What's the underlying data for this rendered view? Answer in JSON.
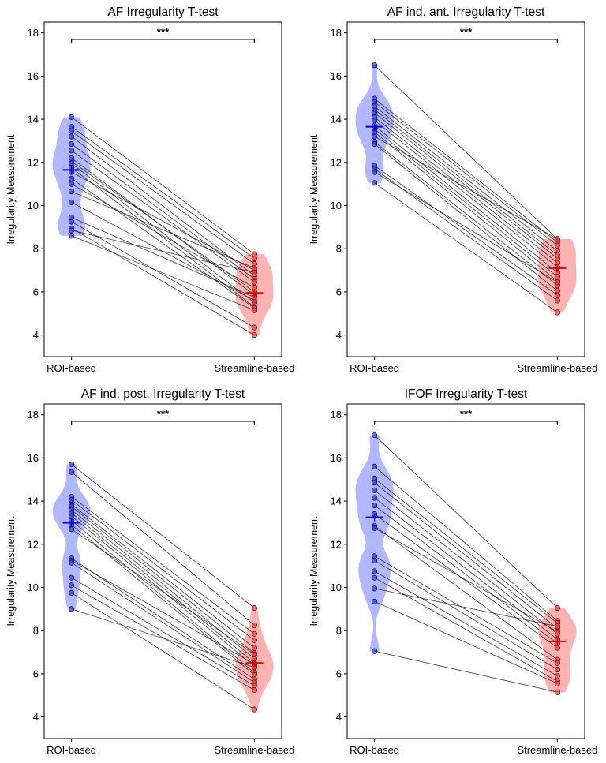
{
  "figure": {
    "layout": "2x2 grid"
  },
  "chart_data": [
    {
      "type": "violin-paired",
      "title": "AF Irregularity T-test",
      "ylabel": "Irregularity Measurement",
      "categories": [
        "ROI-based",
        "Streamline-based"
      ],
      "ylim": [
        3,
        18.5
      ],
      "yticks": [
        "4",
        "6",
        "8",
        "10",
        "12",
        "14",
        "16",
        "18"
      ],
      "significance": "***",
      "colors": {
        "left": "#0000cc",
        "right": "#dd0000",
        "left_fill": "#aab0ff",
        "right_fill": "#ffaaaa"
      },
      "means": [
        11.65,
        5.95
      ],
      "left_values": [
        14.1,
        13.65,
        13.45,
        13.2,
        12.85,
        12.55,
        12.2,
        12.05,
        11.95,
        11.75,
        11.55,
        11.25,
        11.0,
        10.65,
        10.15,
        9.45,
        9.25,
        8.95,
        8.85,
        8.6
      ],
      "right_values": [
        7.75,
        7.55,
        7.3,
        6.75,
        6.6,
        6.45,
        5.85,
        6.0,
        5.5,
        5.3,
        7.0,
        5.25,
        6.2,
        7.1,
        5.6,
        5.75,
        4.35,
        4.0,
        6.9,
        5.15
      ]
    },
    {
      "type": "violin-paired",
      "title": "AF ind. ant. Irregularity T-test",
      "ylabel": "Irregularity Measurement",
      "categories": [
        "ROI-based",
        "Streamline-based"
      ],
      "ylim": [
        3,
        18.5
      ],
      "yticks": [
        "4",
        "6",
        "8",
        "10",
        "12",
        "14",
        "16",
        "18"
      ],
      "significance": "***",
      "colors": {
        "left": "#0000cc",
        "right": "#dd0000",
        "left_fill": "#aab0ff",
        "right_fill": "#ffaaaa"
      },
      "means": [
        13.65,
        7.1
      ],
      "left_values": [
        16.5,
        14.95,
        14.8,
        14.6,
        14.45,
        14.3,
        14.1,
        13.95,
        13.7,
        13.55,
        13.4,
        13.2,
        12.95,
        12.85,
        11.85,
        11.7,
        11.55,
        11.05
      ],
      "right_values": [
        8.45,
        8.3,
        8.15,
        7.9,
        7.7,
        7.55,
        7.35,
        7.15,
        6.9,
        6.7,
        6.5,
        8.45,
        6.3,
        6.05,
        5.85,
        5.6,
        6.45,
        5.05
      ]
    },
    {
      "type": "violin-paired",
      "title": "AF ind. post. Irregularity T-test",
      "ylabel": "Irregularity Measurement",
      "categories": [
        "ROI-based",
        "Streamline-based"
      ],
      "ylim": [
        3,
        18.5
      ],
      "yticks": [
        "4",
        "6",
        "8",
        "10",
        "12",
        "14",
        "16",
        "18"
      ],
      "significance": "***",
      "colors": {
        "left": "#0000cc",
        "right": "#dd0000",
        "left_fill": "#aab0ff",
        "right_fill": "#ffaaaa"
      },
      "means": [
        13.0,
        6.5
      ],
      "left_values": [
        15.7,
        15.35,
        14.2,
        14.05,
        13.85,
        13.75,
        13.6,
        13.45,
        13.3,
        13.1,
        12.9,
        12.7,
        11.35,
        11.25,
        11.15,
        10.45,
        10.1,
        9.75,
        9.0
      ],
      "right_values": [
        9.05,
        8.25,
        7.85,
        7.55,
        7.2,
        6.95,
        6.7,
        6.5,
        6.35,
        6.05,
        5.95,
        6.9,
        5.75,
        6.45,
        5.6,
        5.45,
        5.25,
        4.35,
        6.3
      ]
    },
    {
      "type": "violin-paired",
      "title": "IFOF Irregularity T-test",
      "ylabel": "Irregularity Measurement",
      "categories": [
        "ROI-based",
        "Streamline-based"
      ],
      "ylim": [
        3,
        18.5
      ],
      "yticks": [
        "4",
        "6",
        "8",
        "10",
        "12",
        "14",
        "16",
        "18"
      ],
      "significance": "***",
      "colors": {
        "left": "#0000cc",
        "right": "#dd0000",
        "left_fill": "#aab0ff",
        "right_fill": "#ffaaaa"
      },
      "means": [
        13.25,
        7.5
      ],
      "left_values": [
        17.05,
        15.6,
        15.05,
        14.85,
        14.5,
        14.15,
        13.8,
        13.4,
        12.85,
        12.75,
        11.45,
        11.25,
        10.75,
        10.45,
        9.95,
        9.35,
        7.05
      ],
      "right_values": [
        9.05,
        8.45,
        8.35,
        8.1,
        7.85,
        7.6,
        7.4,
        7.2,
        6.65,
        7.95,
        6.5,
        6.2,
        5.9,
        5.65,
        8.2,
        5.55,
        5.15
      ]
    }
  ]
}
